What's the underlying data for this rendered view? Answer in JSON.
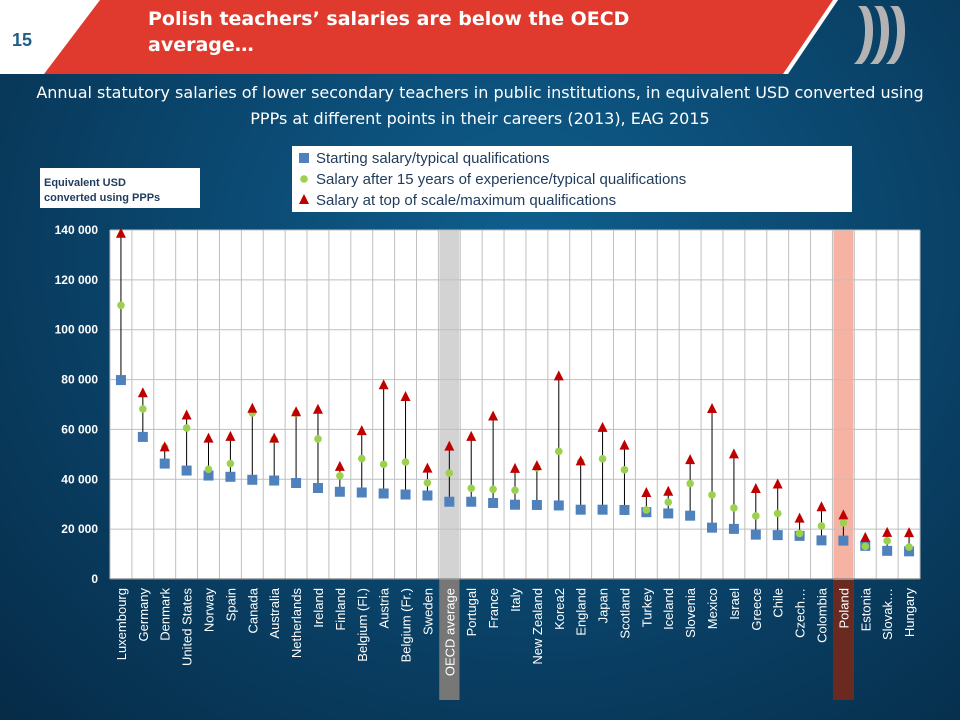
{
  "slide": {
    "number": "15",
    "headline": "Polish teachers’ salaries are below the OECD average…",
    "subtitle": "Annual statutory salaries of lower secondary teachers in public institutions, in equivalent USD converted using PPPs at different points in their careers (2013), EAG 2015"
  },
  "colors": {
    "banner_red": "#e03a2e",
    "start_marker": "#4f81bd",
    "mid_marker": "#9bd14e",
    "top_marker": "#c00000",
    "oecd_band": "#c8c8c8",
    "poland_band": "#f4a592"
  },
  "chart_data": {
    "type": "scatter",
    "ylabel": "Equivalent USD converted using PPPs",
    "ylim": [
      0,
      140000
    ],
    "yticks": [
      0,
      20000,
      40000,
      60000,
      80000,
      100000,
      120000,
      140000
    ],
    "ytick_labels": [
      "0",
      "20 000",
      "40 000",
      "60 000",
      "80 000",
      "100 000",
      "120 000",
      "140 000"
    ],
    "grid": true,
    "legend_position": "top",
    "highlight": [
      "OECD average",
      "Poland"
    ],
    "categories": [
      "Luxembourg",
      "Germany",
      "Denmark",
      "United States",
      "Norway",
      "Spain",
      "Canada",
      "Australia",
      "Netherlands",
      "Ireland",
      "Finland",
      "Belgium (Fl.)",
      "Austria",
      "Belgium (Fr.)",
      "Sweden",
      "OECD average",
      "Portugal",
      "France",
      "Italy",
      "New Zealand",
      "Korea2",
      "England",
      "Japan",
      "Scotland",
      "Turkey",
      "Iceland",
      "Slovenia",
      "Mexico",
      "Israel",
      "Greece",
      "Chile",
      "Czech…",
      "Colombia",
      "Poland",
      "Estonia",
      "Slovak…",
      "Hungary"
    ],
    "series": [
      {
        "name": "Starting salary/typical qualifications",
        "marker": "square",
        "values": [
          79800,
          57000,
          46300,
          43500,
          41500,
          41000,
          39800,
          39500,
          38500,
          36500,
          35000,
          34700,
          34300,
          33900,
          33500,
          31000,
          31000,
          30500,
          29800,
          29700,
          29500,
          27800,
          27800,
          27700,
          26800,
          26300,
          25400,
          20600,
          20100,
          17800,
          17600,
          17300,
          15500,
          15400,
          13300,
          11300,
          11100
        ]
      },
      {
        "name": "Salary after 15 years of experience/typical qualifications",
        "marker": "circle",
        "values": [
          109800,
          68200,
          52800,
          60600,
          44000,
          46300,
          66600,
          56000,
          66500,
          56200,
          41400,
          48300,
          46000,
          46900,
          38600,
          42500,
          36400,
          36000,
          35600,
          44600,
          51200,
          47000,
          48200,
          43800,
          27700,
          30800,
          38300,
          33700,
          28500,
          25300,
          26300,
          18300,
          21300,
          22500,
          13100,
          15300,
          12800
        ]
      },
      {
        "name": "Salary at top of scale/maximum qualifications",
        "marker": "triangle",
        "values": [
          138500,
          74500,
          52800,
          65600,
          56300,
          57000,
          68300,
          56300,
          66900,
          67900,
          45000,
          59300,
          77700,
          73000,
          44300,
          53100,
          57000,
          65200,
          44200,
          45300,
          81300,
          47200,
          60600,
          53500,
          34500,
          35000,
          47700,
          68200,
          50000,
          36100,
          37900,
          24200,
          28800,
          25500,
          16500,
          18500,
          18400
        ]
      }
    ]
  }
}
